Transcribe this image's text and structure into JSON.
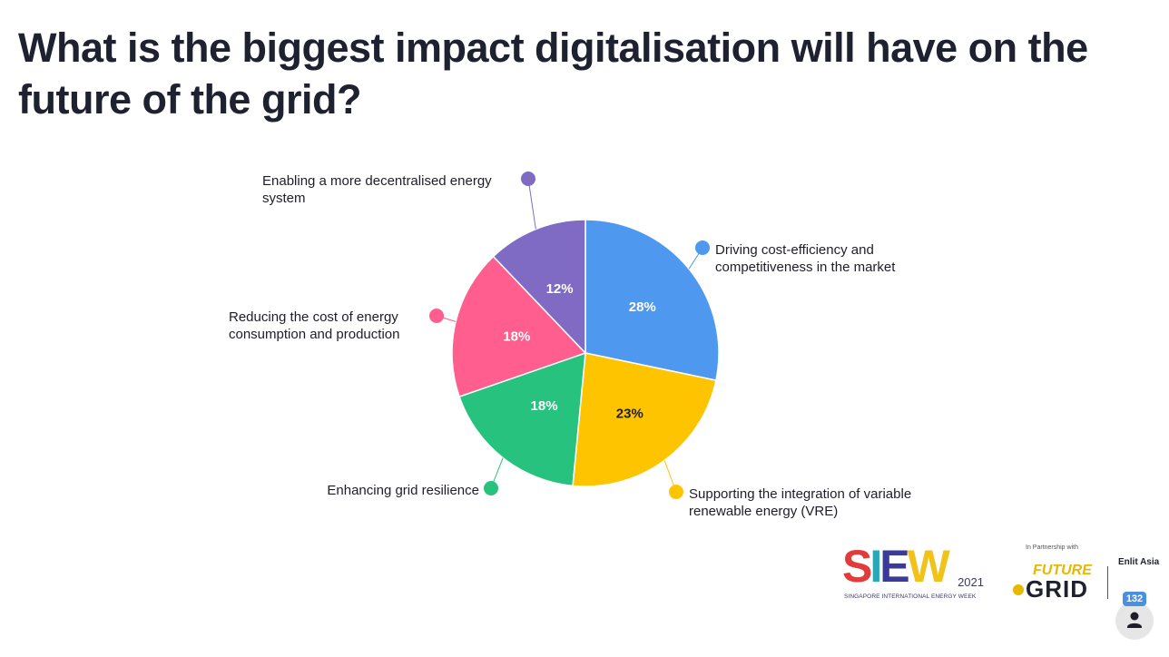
{
  "title": "What is the biggest impact digitalisation will have on the future of the grid?",
  "chart_data": {
    "type": "pie",
    "start": "top",
    "direction": "clockwise",
    "slices": [
      {
        "label": "Driving cost-efficiency and competitiveness in the market",
        "lines": [
          "Driving cost-efficiency and",
          "competitiveness in the market"
        ],
        "value": 28,
        "display": "28%",
        "color": "#4f98f0",
        "text_color": "#ffffff"
      },
      {
        "label": "Supporting the integration of variable renewable energy (VRE)",
        "lines": [
          "Supporting the integration of variable",
          "renewable energy (VRE)"
        ],
        "value": 23,
        "display": "23%",
        "color": "#ffc400",
        "text_color": "#1e1e28"
      },
      {
        "label": "Enhancing grid resilience",
        "lines": [
          "Enhancing grid resilience"
        ],
        "value": 18,
        "display": "18%",
        "color": "#27c27e",
        "text_color": "#ffffff"
      },
      {
        "label": "Reducing the cost of energy consumption and production",
        "lines": [
          "Reducing the cost of energy",
          "consumption and production"
        ],
        "value": 18,
        "display": "18%",
        "color": "#ff5e8e",
        "text_color": "#ffffff"
      },
      {
        "label": "Enabling a more decentralised energy system",
        "lines": [
          "Enabling a more decentralised energy",
          "system"
        ],
        "value": 12,
        "display": "12%",
        "color": "#7f6bc4",
        "text_color": "#ffffff"
      }
    ]
  },
  "logos": {
    "siew_word": "SIEW",
    "siew_year": "2021",
    "siew_sub": "SINGAPORE INTERNATIONAL ENERGY WEEK",
    "partner_text": "In Partnership with",
    "future_grid_future": "FUTURE",
    "future_grid_grid": "GRID",
    "enlit": "Enlit Asia"
  },
  "participants": {
    "count": "132",
    "icon": "person-icon"
  }
}
